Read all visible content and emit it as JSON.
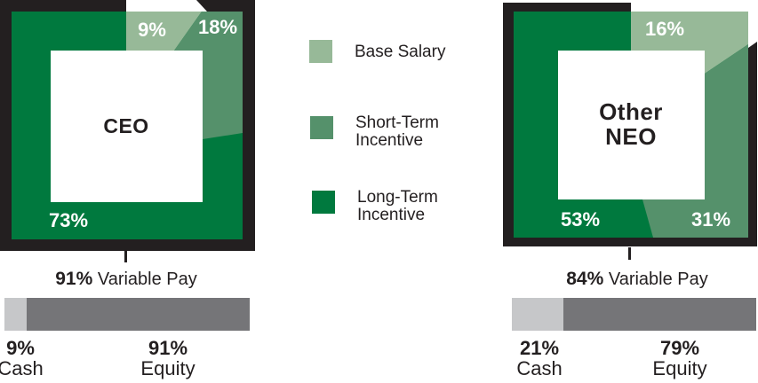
{
  "colors": {
    "base_salary": "#97B998",
    "short_term_incentive": "#55916B",
    "long_term_incentive": "#00793E",
    "frame_black": "#231F20",
    "text_black": "#231F20",
    "cash_gray": "#C6C7C9",
    "equity_gray": "#757578"
  },
  "legend": {
    "items": [
      {
        "id": "base-salary",
        "lines": [
          "Base Salary"
        ]
      },
      {
        "id": "short-term-incentive",
        "lines": [
          "Short-Term",
          "Incentive"
        ]
      },
      {
        "id": "long-term-incentive",
        "lines": [
          "Long-Term",
          "Incentive"
        ]
      }
    ]
  },
  "charts": {
    "ceo": {
      "title": "CEO",
      "segments": {
        "base_salary": "9%",
        "short_term": "18%",
        "long_term": "73%"
      },
      "variable_pay": {
        "pct": "91%",
        "label": "Variable Pay"
      },
      "cash": {
        "pct": "9%",
        "label": "Cash",
        "value": 9
      },
      "equity": {
        "pct": "91%",
        "label": "Equity",
        "value": 91
      }
    },
    "neo": {
      "title_lines": [
        "Other",
        "NEO"
      ],
      "segments": {
        "base_salary": "16%",
        "short_term": "31%",
        "long_term": "53%"
      },
      "variable_pay": {
        "pct": "84%",
        "label": "Variable Pay"
      },
      "cash": {
        "pct": "21%",
        "label": "Cash",
        "value": 21
      },
      "equity": {
        "pct": "79%",
        "label": "Equity",
        "value": 79
      }
    }
  },
  "chart_data": [
    {
      "type": "pie",
      "title": "CEO",
      "categories": [
        "Base Salary",
        "Short-Term Incentive",
        "Long-Term Incentive"
      ],
      "values": [
        9,
        18,
        73
      ],
      "units": "percent",
      "annotations": [
        "91% Variable Pay"
      ],
      "legend_position": "right-of-chart",
      "style": "exploded square donut, white center label"
    },
    {
      "type": "pie",
      "title": "Other NEO",
      "categories": [
        "Base Salary",
        "Short-Term Incentive",
        "Long-Term Incentive"
      ],
      "values": [
        16,
        31,
        53
      ],
      "units": "percent",
      "annotations": [
        "84% Variable Pay"
      ],
      "legend_position": "left-of-chart",
      "style": "exploded square donut, white center label"
    },
    {
      "type": "bar",
      "title": "CEO pay mix (stacked horizontal bar)",
      "categories": [
        "Cash",
        "Equity"
      ],
      "values": [
        9,
        91
      ],
      "units": "percent"
    },
    {
      "type": "bar",
      "title": "Other NEO pay mix (stacked horizontal bar)",
      "categories": [
        "Cash",
        "Equity"
      ],
      "values": [
        21,
        79
      ],
      "units": "percent"
    }
  ]
}
